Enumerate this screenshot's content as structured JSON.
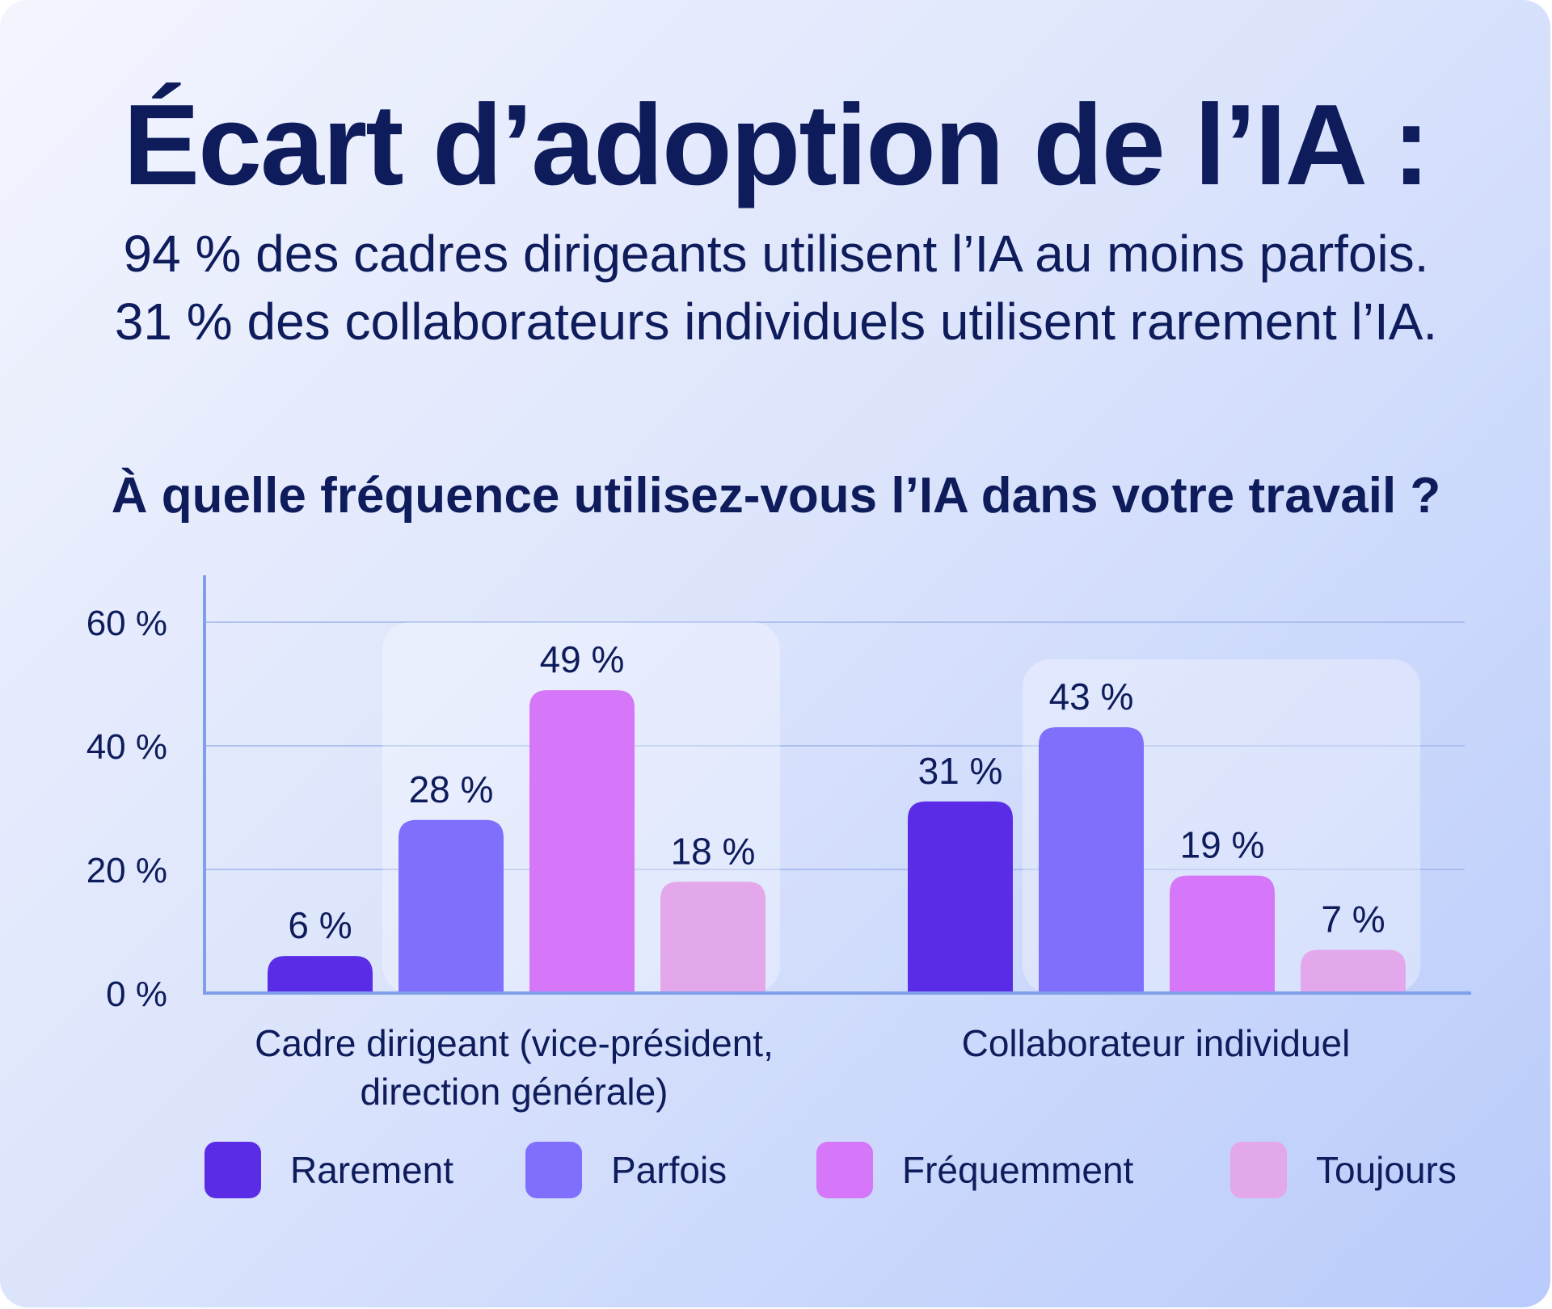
{
  "title": "Écart d’adoption de l’IA :",
  "subtitle": [
    "94 % des cadres dirigeants utilisent l’IA au moins parfois.",
    "31 % des collaborateurs individuels utilisent rarement l’IA."
  ],
  "question": "À quelle fréquence utilisez-vous l’IA dans votre travail ?",
  "chart_data": {
    "type": "bar",
    "title": "À quelle fréquence utilisez-vous l’IA dans votre travail ?",
    "categories": [
      [
        "Cadre dirigeant (vice-président,",
        "direction générale)"
      ],
      [
        "Collaborateur individuel"
      ]
    ],
    "series": [
      {
        "name": "Rarement",
        "color": "#5b2ce6",
        "values": [
          6,
          31
        ],
        "labels": [
          "6 %",
          "31 %"
        ]
      },
      {
        "name": "Parfois",
        "color": "#806ffd",
        "values": [
          28,
          43
        ],
        "labels": [
          "28 %",
          "43 %"
        ]
      },
      {
        "name": "Fréquemment",
        "color": "#d577f8",
        "values": [
          49,
          19
        ],
        "labels": [
          "49 %",
          "19 %"
        ]
      },
      {
        "name": "Toujours",
        "color": "#e3a7ec",
        "values": [
          18,
          7
        ],
        "labels": [
          "18 %",
          "7 %"
        ]
      }
    ],
    "ylim": [
      0,
      60
    ],
    "yticks": [
      0,
      20,
      40,
      60
    ],
    "ytick_labels": [
      "0 %",
      "20 %",
      "40 %",
      "60 %"
    ],
    "grid": true,
    "legend_position": "bottom"
  }
}
